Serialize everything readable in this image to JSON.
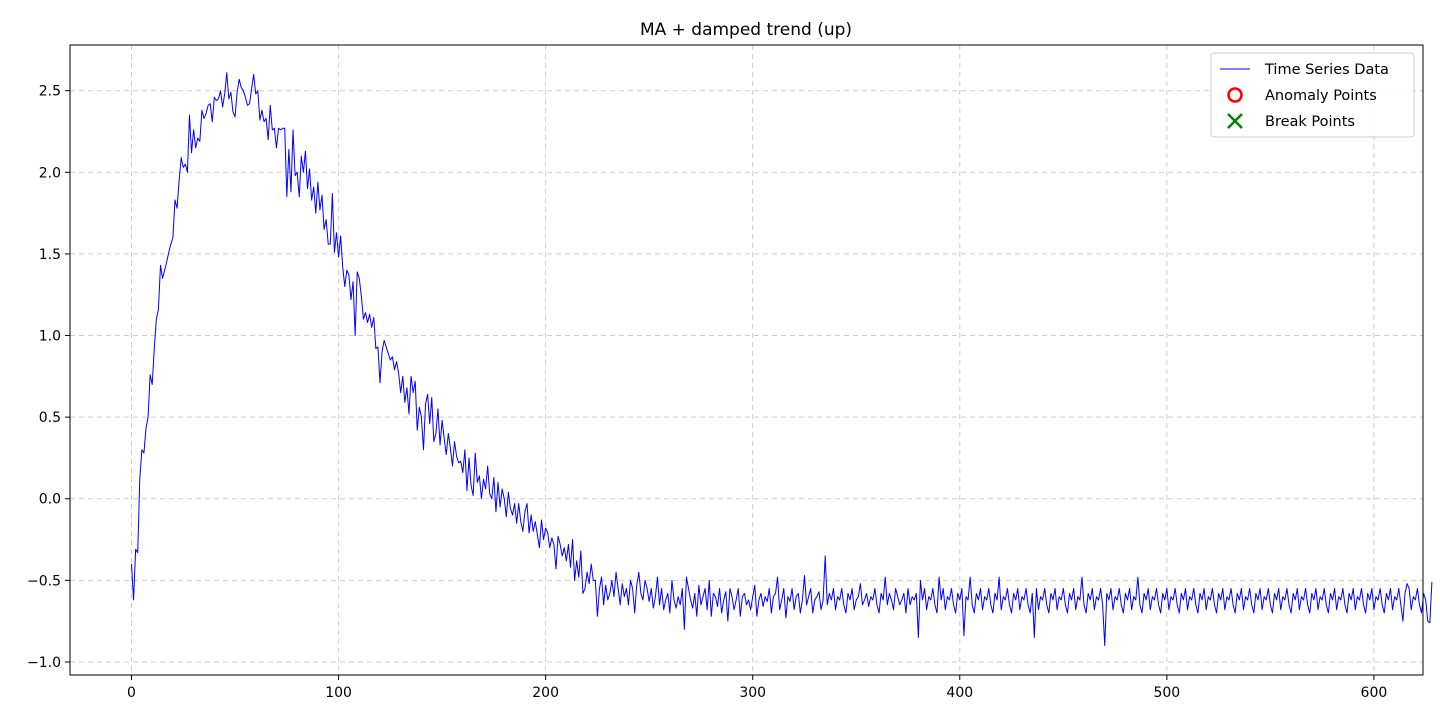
{
  "chart_data": {
    "type": "line",
    "title": "MA + damped trend (up)",
    "xlabel": "",
    "ylabel": "",
    "xlim": [
      -29.7,
      623.7
    ],
    "ylim": [
      -1.08,
      2.78
    ],
    "xticks": [
      0,
      100,
      200,
      300,
      400,
      500,
      600
    ],
    "xtick_labels": [
      "0",
      "100",
      "200",
      "300",
      "400",
      "500",
      "600"
    ],
    "yticks": [
      -1.0,
      -0.5,
      0.0,
      0.5,
      1.0,
      1.5,
      2.0,
      2.5
    ],
    "ytick_labels": [
      "−1.0",
      "−0.5",
      "0.0",
      "0.5",
      "1.0",
      "1.5",
      "2.0",
      "2.5"
    ],
    "grid": true,
    "legend_position": "top-right",
    "legend": [
      {
        "label": "Time Series Data",
        "marker": "line",
        "color": "#0000ff"
      },
      {
        "label": "Anomaly Points",
        "marker": "circle",
        "color": "#ff0000"
      },
      {
        "label": "Break Points",
        "marker": "x",
        "color": "#008000"
      }
    ],
    "series": [
      {
        "color": "#0000ff",
        "x_start": 0,
        "x_step": 1,
        "values": [
          -0.4,
          -0.62,
          -0.31,
          -0.33,
          0.12,
          0.3,
          0.28,
          0.43,
          0.5,
          0.76,
          0.7,
          0.92,
          1.1,
          1.16,
          1.43,
          1.35,
          1.4,
          1.45,
          1.51,
          1.56,
          1.6,
          1.83,
          1.78,
          1.95,
          2.09,
          2.03,
          2.05,
          2.0,
          2.35,
          2.12,
          2.26,
          2.15,
          2.21,
          2.19,
          2.38,
          2.33,
          2.36,
          2.41,
          2.42,
          2.31,
          2.46,
          2.44,
          2.45,
          2.5,
          2.4,
          2.48,
          2.61,
          2.45,
          2.49,
          2.37,
          2.34,
          2.49,
          2.57,
          2.52,
          2.5,
          2.46,
          2.41,
          2.42,
          2.51,
          2.6,
          2.48,
          2.5,
          2.32,
          2.38,
          2.31,
          2.33,
          2.2,
          2.41,
          2.26,
          2.27,
          2.15,
          2.27,
          2.26,
          2.27,
          2.27,
          1.85,
          2.14,
          1.88,
          2.26,
          1.98,
          2.0,
          1.85,
          2.1,
          2.0,
          2.13,
          1.9,
          2.02,
          1.83,
          1.91,
          1.75,
          1.94,
          1.77,
          1.86,
          1.65,
          1.71,
          1.56,
          1.56,
          1.87,
          1.51,
          1.63,
          1.48,
          1.61,
          1.42,
          1.3,
          1.4,
          1.37,
          1.22,
          1.33,
          1.0,
          1.39,
          1.35,
          1.24,
          1.1,
          1.14,
          1.08,
          1.13,
          1.05,
          1.11,
          0.92,
          0.93,
          0.71,
          0.9,
          0.97,
          0.93,
          0.89,
          0.85,
          0.87,
          0.79,
          0.84,
          0.77,
          0.65,
          0.75,
          0.59,
          0.68,
          0.52,
          0.75,
          0.65,
          0.72,
          0.42,
          0.56,
          0.5,
          0.3,
          0.58,
          0.64,
          0.46,
          0.62,
          0.35,
          0.4,
          0.55,
          0.33,
          0.48,
          0.37,
          0.27,
          0.4,
          0.31,
          0.2,
          0.35,
          0.26,
          0.22,
          0.23,
          0.16,
          0.3,
          0.05,
          0.25,
          0.08,
          0.02,
          0.28,
          0.1,
          0.14,
          0.0,
          0.12,
          0.06,
          0.2,
          0.03,
          0.0,
          0.13,
          -0.08,
          0.1,
          -0.05,
          0.06,
          0.0,
          -0.11,
          0.04,
          -0.06,
          -0.1,
          -0.03,
          -0.15,
          -0.03,
          -0.14,
          -0.2,
          -0.08,
          -0.03,
          -0.21,
          -0.1,
          -0.2,
          -0.14,
          -0.22,
          -0.3,
          -0.13,
          -0.25,
          -0.18,
          -0.21,
          -0.3,
          -0.24,
          -0.28,
          -0.43,
          -0.23,
          -0.28,
          -0.35,
          -0.3,
          -0.38,
          -0.28,
          -0.42,
          -0.25,
          -0.5,
          -0.38,
          -0.48,
          -0.32,
          -0.58,
          -0.55,
          -0.45,
          -0.52,
          -0.4,
          -0.5,
          -0.5,
          -0.72,
          -0.55,
          -0.48,
          -0.65,
          -0.53,
          -0.62,
          -0.58,
          -0.5,
          -0.6,
          -0.45,
          -0.55,
          -0.65,
          -0.52,
          -0.6,
          -0.55,
          -0.65,
          -0.5,
          -0.55,
          -0.7,
          -0.53,
          -0.45,
          -0.58,
          -0.62,
          -0.5,
          -0.55,
          -0.63,
          -0.55,
          -0.67,
          -0.6,
          -0.48,
          -0.65,
          -0.55,
          -0.68,
          -0.62,
          -0.58,
          -0.7,
          -0.5,
          -0.62,
          -0.67,
          -0.6,
          -0.65,
          -0.55,
          -0.8,
          -0.48,
          -0.55,
          -0.62,
          -0.67,
          -0.58,
          -0.72,
          -0.53,
          -0.65,
          -0.6,
          -0.55,
          -0.68,
          -0.5,
          -0.72,
          -0.58,
          -0.6,
          -0.66,
          -0.55,
          -0.7,
          -0.62,
          -0.57,
          -0.75,
          -0.55,
          -0.6,
          -0.68,
          -0.62,
          -0.55,
          -0.72,
          -0.6,
          -0.58,
          -0.65,
          -0.62,
          -0.68,
          -0.6,
          -0.53,
          -0.72,
          -0.62,
          -0.58,
          -0.66,
          -0.6,
          -0.63,
          -0.55,
          -0.7,
          -0.6,
          -0.58,
          -0.48,
          -0.68,
          -0.62,
          -0.55,
          -0.73,
          -0.6,
          -0.63,
          -0.55,
          -0.68,
          -0.6,
          -0.58,
          -0.7,
          -0.62,
          -0.47,
          -0.65,
          -0.6,
          -0.55,
          -0.7,
          -0.62,
          -0.6,
          -0.57,
          -0.68,
          -0.62,
          -0.35,
          -0.65,
          -0.58,
          -0.62,
          -0.55,
          -0.68,
          -0.6,
          -0.62,
          -0.55,
          -0.65,
          -0.7,
          -0.58,
          -0.62,
          -0.55,
          -0.68,
          -0.62,
          -0.6,
          -0.52,
          -0.65,
          -0.62,
          -0.58,
          -0.66,
          -0.6,
          -0.62,
          -0.55,
          -0.65,
          -0.7,
          -0.58,
          -0.62,
          -0.48,
          -0.65,
          -0.58,
          -0.62,
          -0.68,
          -0.55,
          -0.6,
          -0.65,
          -0.62,
          -0.58,
          -0.7,
          -0.55,
          -0.65,
          -0.6,
          -0.62,
          -0.58,
          -0.85,
          -0.5,
          -0.62,
          -0.55,
          -0.68,
          -0.6,
          -0.62,
          -0.55,
          -0.65,
          -0.7,
          -0.48,
          -0.62,
          -0.55,
          -0.68,
          -0.6,
          -0.62,
          -0.55,
          -0.65,
          -0.7,
          -0.58,
          -0.62,
          -0.55,
          -0.84,
          -0.6,
          -0.62,
          -0.48,
          -0.65,
          -0.7,
          -0.58,
          -0.62,
          -0.55,
          -0.68,
          -0.6,
          -0.62,
          -0.55,
          -0.65,
          -0.7,
          -0.58,
          -0.62,
          -0.48,
          -0.68,
          -0.6,
          -0.62,
          -0.55,
          -0.65,
          -0.7,
          -0.58,
          -0.62,
          -0.55,
          -0.68,
          -0.6,
          -0.62,
          -0.55,
          -0.65,
          -0.7,
          -0.58,
          -0.85,
          -0.55,
          -0.68,
          -0.6,
          -0.62,
          -0.55,
          -0.65,
          -0.7,
          -0.58,
          -0.62,
          -0.55,
          -0.68,
          -0.6,
          -0.62,
          -0.55,
          -0.65,
          -0.7,
          -0.58,
          -0.62,
          -0.55,
          -0.68,
          -0.6,
          -0.62,
          -0.48,
          -0.65,
          -0.7,
          -0.58,
          -0.62,
          -0.55,
          -0.68,
          -0.6,
          -0.62,
          -0.55,
          -0.65,
          -0.9,
          -0.58,
          -0.62,
          -0.55,
          -0.68,
          -0.6,
          -0.62,
          -0.55,
          -0.65,
          -0.7,
          -0.58,
          -0.62,
          -0.55,
          -0.68,
          -0.6,
          -0.62,
          -0.48,
          -0.65,
          -0.7,
          -0.58,
          -0.62,
          -0.55,
          -0.68,
          -0.6,
          -0.62,
          -0.55,
          -0.65,
          -0.7,
          -0.58,
          -0.62,
          -0.55,
          -0.68,
          -0.6,
          -0.62,
          -0.55,
          -0.65,
          -0.7,
          -0.58,
          -0.62,
          -0.55,
          -0.68,
          -0.6,
          -0.62,
          -0.55,
          -0.65,
          -0.7,
          -0.58,
          -0.62,
          -0.55,
          -0.68,
          -0.6,
          -0.62,
          -0.55,
          -0.65,
          -0.7,
          -0.58,
          -0.62,
          -0.55,
          -0.68,
          -0.6,
          -0.62,
          -0.55,
          -0.65,
          -0.7,
          -0.58,
          -0.62,
          -0.55,
          -0.68,
          -0.6,
          -0.62,
          -0.55,
          -0.65,
          -0.7,
          -0.58,
          -0.62,
          -0.55,
          -0.68,
          -0.6,
          -0.62,
          -0.55,
          -0.65,
          -0.7,
          -0.58,
          -0.62,
          -0.55,
          -0.68,
          -0.6,
          -0.62,
          -0.55,
          -0.65,
          -0.7,
          -0.58,
          -0.62,
          -0.55,
          -0.68,
          -0.6,
          -0.62,
          -0.55,
          -0.65,
          -0.7,
          -0.58,
          -0.62,
          -0.55,
          -0.68,
          -0.6,
          -0.62,
          -0.55,
          -0.65,
          -0.7,
          -0.58,
          -0.62,
          -0.55,
          -0.68,
          -0.6,
          -0.62,
          -0.55,
          -0.65,
          -0.7,
          -0.58,
          -0.62,
          -0.55,
          -0.68,
          -0.6,
          -0.62,
          -0.55,
          -0.65,
          -0.7,
          -0.58,
          -0.62,
          -0.55,
          -0.68,
          -0.6,
          -0.62,
          -0.55,
          -0.65,
          -0.7,
          -0.58,
          -0.62,
          -0.55,
          -0.68,
          -0.6,
          -0.62,
          -0.55,
          -0.65,
          -0.75,
          -0.58,
          -0.52,
          -0.55,
          -0.68,
          -0.6,
          -0.62,
          -0.55,
          -0.65,
          -0.7,
          -0.58,
          -0.62,
          -0.75,
          -0.76,
          -0.51
        ]
      }
    ]
  }
}
